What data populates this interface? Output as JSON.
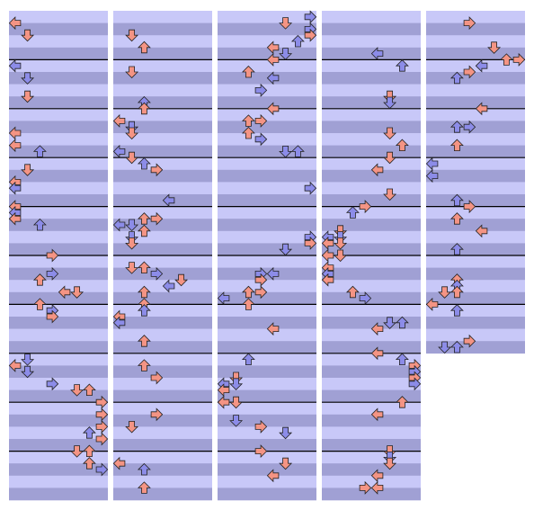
{
  "columns": [
    {
      "measures": 10
    },
    {
      "measures": 10
    },
    {
      "measures": 10
    },
    {
      "measures": 10
    },
    {
      "measures": 7
    }
  ]
}
